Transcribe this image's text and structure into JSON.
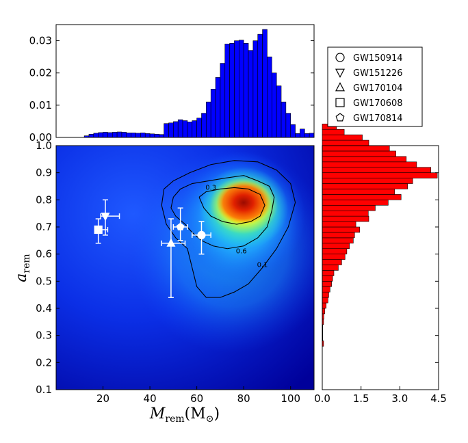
{
  "chart_data": {
    "type": "scatter",
    "panels": {
      "main": {
        "kind": "2d-density-heatmap-with-contours",
        "xlabel": "M",
        "xlabel_sub": "rem",
        "xlabel_units": "(M",
        "xlabel_units_sub": "⊙",
        "xlabel_units_close": ")",
        "ylabel": "a",
        "ylabel_sub": "rem",
        "xlim": [
          0,
          110
        ],
        "ylim": [
          0.1,
          1.0
        ],
        "xticks": [
          20,
          40,
          60,
          80,
          100
        ],
        "yticks": [
          0.1,
          0.2,
          0.3,
          0.4,
          0.5,
          0.6,
          0.7,
          0.8,
          0.9,
          1.0
        ],
        "density_peak": {
          "x": 80,
          "y": 0.79
        },
        "contours": [
          {
            "level": "0.6",
            "label": "0.6",
            "points": [
              [
                49,
                0.77
              ],
              [
                50,
                0.81
              ],
              [
                53,
                0.84
              ],
              [
                58,
                0.86
              ],
              [
                65,
                0.87
              ],
              [
                72,
                0.88
              ],
              [
                80,
                0.89
              ],
              [
                86,
                0.87
              ],
              [
                91,
                0.85
              ],
              [
                93,
                0.81
              ],
              [
                92,
                0.76
              ],
              [
                90,
                0.7
              ],
              [
                86,
                0.66
              ],
              [
                80,
                0.63
              ],
              [
                73,
                0.62
              ],
              [
                67,
                0.63
              ],
              [
                62,
                0.65
              ],
              [
                58,
                0.68
              ],
              [
                55,
                0.71
              ],
              [
                51,
                0.74
              ],
              [
                49,
                0.77
              ]
            ],
            "label_at": [
              79,
              0.61
            ]
          },
          {
            "level": "0.3",
            "label": "0.3",
            "points": [
              [
                61,
                0.81
              ],
              [
                64,
                0.83
              ],
              [
                70,
                0.84
              ],
              [
                76,
                0.845
              ],
              [
                82,
                0.84
              ],
              [
                87,
                0.82
              ],
              [
                89,
                0.78
              ],
              [
                87,
                0.74
              ],
              [
                83,
                0.72
              ],
              [
                77,
                0.71
              ],
              [
                71,
                0.72
              ],
              [
                66,
                0.74
              ],
              [
                63,
                0.77
              ],
              [
                61,
                0.81
              ]
            ],
            "label_at": [
              66,
              0.845
            ]
          },
          {
            "level": "0.1",
            "label": "0.1",
            "points": [
              [
                46,
                0.84
              ],
              [
                50,
                0.87
              ],
              [
                57,
                0.9
              ],
              [
                66,
                0.93
              ],
              [
                76,
                0.945
              ],
              [
                86,
                0.94
              ],
              [
                94,
                0.91
              ],
              [
                100,
                0.86
              ],
              [
                102,
                0.79
              ],
              [
                99,
                0.7
              ],
              [
                94,
                0.62
              ],
              [
                88,
                0.55
              ],
              [
                82,
                0.49
              ],
              [
                76,
                0.46
              ],
              [
                70,
                0.44
              ],
              [
                64,
                0.44
              ],
              [
                60,
                0.48
              ],
              [
                58,
                0.55
              ],
              [
                56,
                0.62
              ],
              [
                51,
                0.66
              ],
              [
                47,
                0.71
              ],
              [
                45,
                0.78
              ],
              [
                46,
                0.84
              ]
            ],
            "label_at": [
              88,
              0.56
            ]
          }
        ],
        "events": [
          {
            "name": "GW150914",
            "marker": "circle",
            "x": 62,
            "y": 0.67,
            "xerr": [
              4,
              4
            ],
            "yerr": [
              0.07,
              0.05
            ]
          },
          {
            "name": "GW151226",
            "marker": "triangle-down",
            "x": 21,
            "y": 0.74,
            "xerr": [
              2,
              6
            ],
            "yerr": [
              0.07,
              0.06
            ]
          },
          {
            "name": "GW170104",
            "marker": "triangle-up",
            "x": 49,
            "y": 0.64,
            "xerr": [
              4,
              6
            ],
            "yerr": [
              0.2,
              0.09
            ]
          },
          {
            "name": "GW170608",
            "marker": "square",
            "x": 18,
            "y": 0.69,
            "xerr": [
              1,
              4
            ],
            "yerr": [
              0.05,
              0.04
            ]
          },
          {
            "name": "GW170814",
            "marker": "pentagon",
            "x": 53,
            "y": 0.7,
            "xerr": [
              3,
              3
            ],
            "yerr": [
              0.05,
              0.07
            ]
          }
        ]
      },
      "top_histogram": {
        "type": "bar",
        "color": "#0000ff",
        "xlim": [
          0,
          110
        ],
        "ylim": [
          0,
          0.035
        ],
        "yticks": [
          "0.00",
          "0.01",
          "0.02",
          "0.03"
        ],
        "bin_width": 2,
        "bin_start": 0,
        "values": [
          0,
          0,
          0,
          0,
          0,
          0,
          0.0005,
          0.001,
          0.0013,
          0.0015,
          0.0016,
          0.0015,
          0.0016,
          0.0017,
          0.0016,
          0.0014,
          0.0014,
          0.0013,
          0.0014,
          0.0012,
          0.0011,
          0.001,
          0.0009,
          0.0043,
          0.0045,
          0.0049,
          0.0055,
          0.0052,
          0.0048,
          0.0052,
          0.006,
          0.0075,
          0.011,
          0.015,
          0.0186,
          0.023,
          0.029,
          0.0292,
          0.03,
          0.0302,
          0.0292,
          0.027,
          0.03,
          0.032,
          0.0335,
          0.025,
          0.02,
          0.016,
          0.011,
          0.0075,
          0.004,
          0.0012,
          0.0026,
          0.0012,
          0.0013
        ]
      },
      "right_histogram": {
        "type": "bar",
        "orientation": "horizontal",
        "color": "#ff0000",
        "ylim": [
          0.1,
          1.0
        ],
        "xlim": [
          0,
          4.5
        ],
        "xticks": [
          "0.0",
          "1.5",
          "3.0",
          "4.5"
        ],
        "bin_width": 0.02,
        "bin_start": 0.26,
        "values": [
          0.05,
          0.02,
          0.02,
          0.02,
          0.05,
          0.06,
          0.1,
          0.15,
          0.22,
          0.25,
          0.3,
          0.36,
          0.4,
          0.45,
          0.62,
          0.75,
          0.88,
          0.95,
          1.05,
          1.2,
          1.25,
          1.45,
          1.3,
          1.8,
          1.78,
          2.05,
          2.55,
          3.05,
          2.8,
          3.3,
          3.5,
          4.45,
          4.2,
          3.65,
          3.25,
          2.85,
          2.6,
          1.8,
          1.55,
          0.85,
          0.55
        ]
      }
    },
    "legend": {
      "placement": "top-right",
      "entries": [
        {
          "label": "GW150914",
          "marker": "circle"
        },
        {
          "label": "GW151226",
          "marker": "triangle-down"
        },
        {
          "label": "GW170104",
          "marker": "triangle-up"
        },
        {
          "label": "GW170608",
          "marker": "square"
        },
        {
          "label": "GW170814",
          "marker": "pentagon"
        }
      ]
    }
  }
}
